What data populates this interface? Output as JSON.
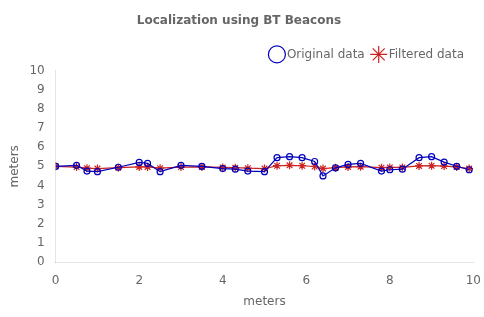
{
  "chart_data": {
    "type": "line",
    "title": "Localization using BT Beacons",
    "xlabel": "meters",
    "ylabel": "meters",
    "x": [
      0.0,
      0.5,
      0.75,
      1.0,
      1.5,
      2.0,
      2.2,
      2.5,
      3.0,
      3.5,
      4.0,
      4.3,
      4.6,
      5.0,
      5.3,
      5.6,
      5.9,
      6.2,
      6.4,
      6.7,
      7.0,
      7.3,
      7.8,
      8.0,
      8.3,
      8.7,
      9.0,
      9.3,
      9.6,
      9.9
    ],
    "series": [
      {
        "name": "Original data",
        "color": "#0000bb",
        "marker": "circle",
        "values": [
          5.0,
          5.05,
          4.75,
          4.72,
          4.95,
          5.2,
          5.15,
          4.72,
          5.05,
          5.0,
          4.88,
          4.85,
          4.75,
          4.72,
          5.45,
          5.5,
          5.45,
          5.25,
          4.5,
          4.92,
          5.1,
          5.15,
          4.75,
          4.82,
          4.85,
          5.45,
          5.5,
          5.22,
          5.0,
          4.82
        ]
      },
      {
        "name": "Filtered data",
        "color": "#cc2222",
        "marker": "star",
        "values": [
          5.0,
          4.96,
          4.9,
          4.88,
          4.93,
          4.97,
          4.97,
          4.9,
          4.96,
          4.97,
          4.94,
          4.93,
          4.9,
          4.88,
          5.03,
          5.05,
          5.03,
          4.99,
          4.88,
          4.93,
          4.97,
          4.98,
          4.93,
          4.94,
          4.94,
          5.02,
          5.03,
          5.01,
          4.97,
          4.88
        ]
      }
    ],
    "xlim": [
      0,
      10
    ],
    "ylim": [
      0,
      10
    ],
    "xticks": [
      0,
      2,
      4,
      6,
      8,
      10
    ],
    "yticks": [
      0,
      1,
      2,
      3,
      4,
      5,
      6,
      7,
      8,
      9,
      10
    ],
    "grid": false,
    "legend": "upper right"
  }
}
